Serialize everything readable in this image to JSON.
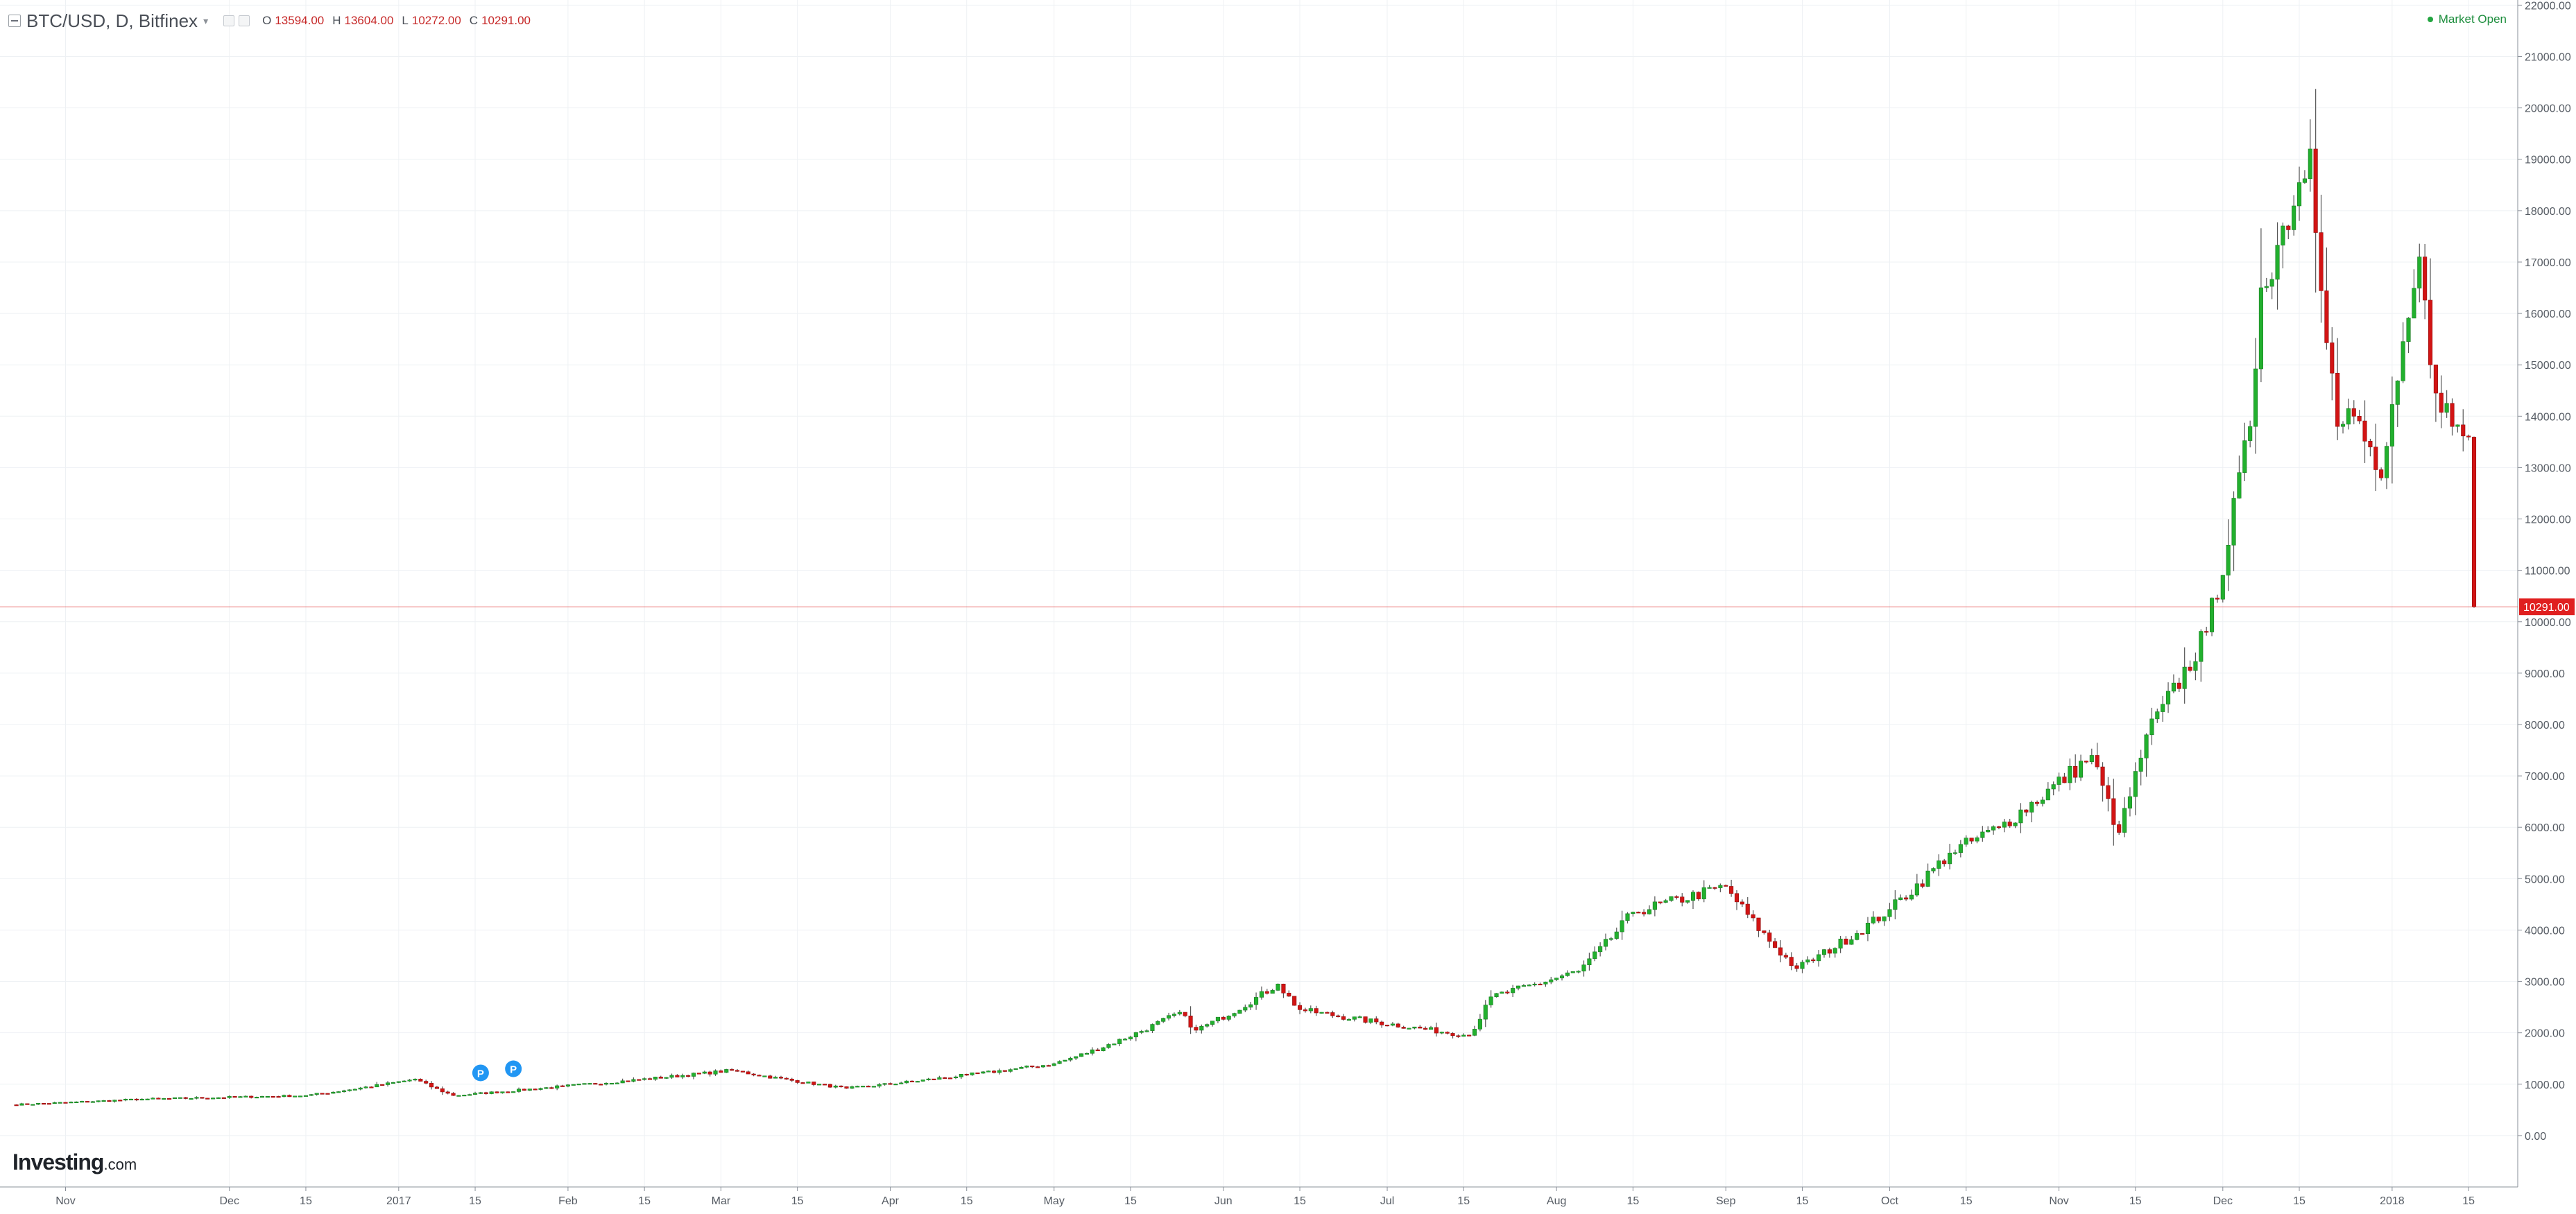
{
  "header": {
    "symbol": "BTC/USD, D, Bitfinex",
    "ohlc": [
      {
        "label": "O",
        "value": "13594.00"
      },
      {
        "label": "H",
        "value": "13604.00"
      },
      {
        "label": "L",
        "value": "10272.00"
      },
      {
        "label": "C",
        "value": "10291.00"
      }
    ]
  },
  "status": {
    "market": "Market Open"
  },
  "markers": [
    {
      "label": "P",
      "x": "2017-01-16",
      "y": 1220
    },
    {
      "label": "P",
      "x": "2017-01-22",
      "y": 1300
    }
  ],
  "price_line": {
    "label": "10291.00",
    "value": 10291,
    "color": "#e02020"
  },
  "branding": {
    "name": "Investing",
    "suffix": ".com"
  },
  "colors": {
    "up": "#22b02e",
    "down": "#d21414",
    "wick": "#555555",
    "grid": "#eef1f4",
    "marker": "#2196f3"
  },
  "chart_data": {
    "type": "candlestick",
    "title": "",
    "xlabel": "",
    "ylabel": "",
    "y_range": [
      -1000,
      22100
    ],
    "x_range": [
      "2016-10-20",
      "2018-01-24"
    ],
    "y_ticks": [
      "0.00",
      "1000.00",
      "2000.00",
      "3000.00",
      "4000.00",
      "5000.00",
      "6000.00",
      "7000.00",
      "8000.00",
      "9000.00",
      "10000.00",
      "11000.00",
      "12000.00",
      "13000.00",
      "14000.00",
      "15000.00",
      "16000.00",
      "17000.00",
      "18000.00",
      "19000.00",
      "20000.00",
      "21000.00",
      "22000.00"
    ],
    "x_ticks": [
      {
        "label": "Nov",
        "x": "2016-11-01"
      },
      {
        "label": "Dec",
        "x": "2016-12-01"
      },
      {
        "label": "15",
        "x": "2016-12-15"
      },
      {
        "label": "2017",
        "x": "2017-01-01"
      },
      {
        "label": "15",
        "x": "2017-01-15"
      },
      {
        "label": "Feb",
        "x": "2017-02-01"
      },
      {
        "label": "15",
        "x": "2017-02-15"
      },
      {
        "label": "Mar",
        "x": "2017-03-01"
      },
      {
        "label": "15",
        "x": "2017-03-15"
      },
      {
        "label": "Apr",
        "x": "2017-04-01"
      },
      {
        "label": "15",
        "x": "2017-04-15"
      },
      {
        "label": "May",
        "x": "2017-05-01"
      },
      {
        "label": "15",
        "x": "2017-05-15"
      },
      {
        "label": "Jun",
        "x": "2017-06-01"
      },
      {
        "label": "15",
        "x": "2017-06-15"
      },
      {
        "label": "Jul",
        "x": "2017-07-01"
      },
      {
        "label": "15",
        "x": "2017-07-15"
      },
      {
        "label": "Aug",
        "x": "2017-08-01"
      },
      {
        "label": "15",
        "x": "2017-08-15"
      },
      {
        "label": "Sep",
        "x": "2017-09-01"
      },
      {
        "label": "15",
        "x": "2017-09-15"
      },
      {
        "label": "Oct",
        "x": "2017-10-01"
      },
      {
        "label": "15",
        "x": "2017-10-15"
      },
      {
        "label": "Nov",
        "x": "2017-11-01"
      },
      {
        "label": "15",
        "x": "2017-11-15"
      },
      {
        "label": "Dec",
        "x": "2017-12-01"
      },
      {
        "label": "15",
        "x": "2017-12-15"
      },
      {
        "label": "2018",
        "x": "2018-01-01"
      },
      {
        "label": "15",
        "x": "2018-01-15"
      }
    ],
    "key_points": [
      [
        "2016-10-22",
        600
      ],
      [
        "2016-11-15",
        710
      ],
      [
        "2016-12-15",
        780
      ],
      [
        "2017-01-04",
        1100
      ],
      [
        "2017-01-11",
        780
      ],
      [
        "2017-01-31",
        960
      ],
      [
        "2017-03-03",
        1270
      ],
      [
        "2017-03-24",
        920
      ],
      [
        "2017-04-15",
        1180
      ],
      [
        "2017-05-01",
        1400
      ],
      [
        "2017-05-24",
        2400
      ],
      [
        "2017-05-27",
        2050
      ],
      [
        "2017-06-11",
        2950
      ],
      [
        "2017-06-15",
        2450
      ],
      [
        "2017-07-16",
        1950
      ],
      [
        "2017-07-20",
        2700
      ],
      [
        "2017-08-05",
        3200
      ],
      [
        "2017-08-15",
        4350
      ],
      [
        "2017-09-01",
        4850
      ],
      [
        "2017-09-14",
        3250
      ],
      [
        "2017-10-01",
        4400
      ],
      [
        "2017-10-12",
        5500
      ],
      [
        "2017-10-21",
        6000
      ],
      [
        "2017-11-07",
        7400
      ],
      [
        "2017-11-12",
        5900
      ],
      [
        "2017-11-17",
        7800
      ],
      [
        "2017-11-28",
        9800
      ],
      [
        "2017-12-06",
        13800
      ],
      [
        "2017-12-08",
        16500
      ],
      [
        "2017-12-17",
        19200
      ],
      [
        "2017-12-22",
        13800
      ],
      [
        "2017-12-25",
        14000
      ],
      [
        "2017-12-30",
        12800
      ],
      [
        "2018-01-06",
        17100
      ],
      [
        "2018-01-08",
        15000
      ],
      [
        "2018-01-12",
        13800
      ],
      [
        "2018-01-15",
        13594
      ],
      [
        "2018-01-16",
        10291
      ]
    ],
    "last_candle": {
      "x": "2018-01-16",
      "open": 13594,
      "high": 13604,
      "low": 10272,
      "close": 10291
    }
  }
}
